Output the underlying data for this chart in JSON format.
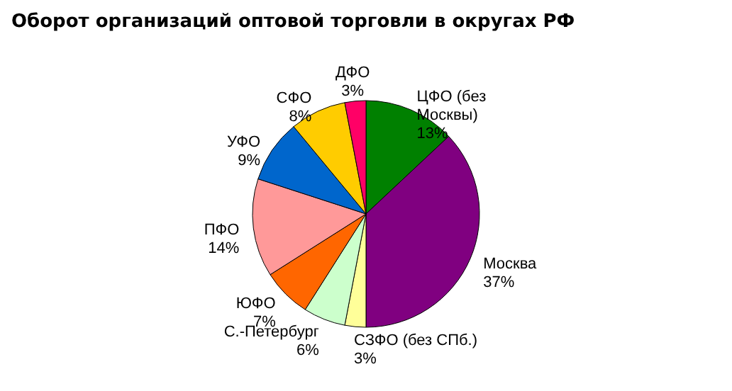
{
  "chart_data": {
    "type": "pie",
    "title": "Оборот организаций оптовой торговли в округах РФ",
    "categories": [
      "ЦФО (без Москвы)",
      "Москва",
      "СЗФО (без СПб.)",
      "С.-Петербург",
      "ЮФО",
      "ПФО",
      "УФО",
      "СФО",
      "ДФО"
    ],
    "values": [
      13,
      37,
      3,
      6,
      7,
      14,
      9,
      8,
      3
    ],
    "colors": [
      "#008000",
      "#800080",
      "#ffff99",
      "#ccffcc",
      "#ff6600",
      "#ff9999",
      "#0066cc",
      "#ffcc00",
      "#ff0066"
    ],
    "value_labels": [
      "13%",
      "37%",
      "3%",
      "6%",
      "7%",
      "14%",
      "9%",
      "8%",
      "3%"
    ],
    "legend": false
  }
}
